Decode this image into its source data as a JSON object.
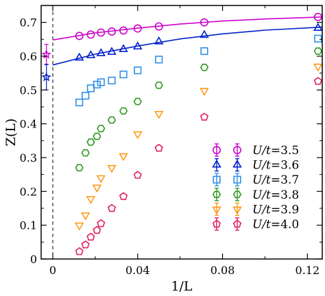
{
  "chart_data": {
    "type": "scatter",
    "xlabel": "1/L",
    "ylabel": "Z(L)",
    "xlim": [
      -0.0055,
      0.127
    ],
    "ylim": [
      0,
      0.75
    ],
    "xticks": [
      0,
      0.04,
      0.08,
      0.12
    ],
    "xtick_labels": [
      "0",
      "0.04",
      "0.08",
      "0.12"
    ],
    "yticks": [
      0,
      0.1,
      0.2,
      0.3,
      0.4,
      0.5,
      0.6,
      0.7
    ],
    "ytick_labels": [
      "0",
      "0.1",
      "0.2",
      "0.3",
      "0.4",
      "0.5",
      "0.6",
      "0.7"
    ],
    "grid": false,
    "legend_position": "bottom-right",
    "reference_line": {
      "x": 0,
      "style": "dashed"
    },
    "series": [
      {
        "name": "U/t=3.5",
        "legend_u": "U/t",
        "legend_val": "=3.5",
        "color": "#cc00cc",
        "marker": "circle",
        "x": [
          0.0125,
          0.0179,
          0.0227,
          0.0278,
          0.0333,
          0.04,
          0.05,
          0.0714,
          0.125
        ],
        "y": [
          0.66,
          0.664,
          0.67,
          0.673,
          0.676,
          0.682,
          0.688,
          0.7,
          0.716
        ],
        "fit": {
          "x0": 0,
          "y0": 0.648,
          "x": [
            0,
            0.02,
            0.04,
            0.06,
            0.08,
            0.1,
            0.127
          ],
          "y": [
            0.648,
            0.669,
            0.683,
            0.695,
            0.704,
            0.71,
            0.716
          ]
        },
        "extrapolated": {
          "x": -0.003,
          "y": 0.605,
          "err": 0.03,
          "marker": "star"
        }
      },
      {
        "name": "U/t=3.6",
        "legend_u": "U/t",
        "legend_val": "=3.6",
        "color": "#0020c8",
        "marker": "triangle-up",
        "x": [
          0.0125,
          0.0179,
          0.0227,
          0.0278,
          0.0333,
          0.04,
          0.05,
          0.0714,
          0.125
        ],
        "y": [
          0.595,
          0.602,
          0.608,
          0.612,
          0.62,
          0.628,
          0.643,
          0.662,
          0.683
        ],
        "fit": {
          "x": [
            0,
            0.02,
            0.04,
            0.06,
            0.08,
            0.1,
            0.127
          ],
          "y": [
            0.574,
            0.606,
            0.63,
            0.651,
            0.666,
            0.677,
            0.686
          ]
        },
        "extrapolated": {
          "x": -0.003,
          "y": 0.538,
          "err": 0.038,
          "marker": "star"
        }
      },
      {
        "name": "U/t=3.7",
        "legend_u": "U/t",
        "legend_val": "=3.7",
        "color": "#2f8fe6",
        "marker": "square",
        "x": [
          0.0125,
          0.0154,
          0.0179,
          0.0208,
          0.0227,
          0.0278,
          0.0333,
          0.04,
          0.05,
          0.0714,
          0.125
        ],
        "y": [
          0.463,
          0.483,
          0.505,
          0.516,
          0.523,
          0.528,
          0.546,
          0.558,
          0.59,
          0.615,
          0.652
        ]
      },
      {
        "name": "U/t=3.8",
        "legend_u": "U/t",
        "legend_val": "=3.8",
        "color": "#2e9a1e",
        "marker": "hexagon",
        "x": [
          0.0125,
          0.0154,
          0.0179,
          0.0208,
          0.0227,
          0.0278,
          0.0333,
          0.04,
          0.05,
          0.0714,
          0.125
        ],
        "y": [
          0.27,
          0.314,
          0.346,
          0.363,
          0.386,
          0.411,
          0.438,
          0.466,
          0.514,
          0.567,
          0.615
        ]
      },
      {
        "name": "U/t=3.9",
        "legend_u": "U/t",
        "legend_val": "=3.9",
        "color": "#ff9a1a",
        "marker": "triangle-down",
        "x": [
          0.0125,
          0.0154,
          0.0179,
          0.0208,
          0.0227,
          0.0278,
          0.0333,
          0.04,
          0.05,
          0.0714,
          0.125
        ],
        "y": [
          0.1,
          0.13,
          0.178,
          0.212,
          0.24,
          0.27,
          0.305,
          0.37,
          0.43,
          0.498,
          0.57
        ]
      },
      {
        "name": "U/t=4.0",
        "legend_u": "U/t",
        "legend_val": "=4.0",
        "color": "#e0205a",
        "marker": "pentagon",
        "x": [
          0.0125,
          0.0154,
          0.0179,
          0.0208,
          0.0227,
          0.0278,
          0.0333,
          0.04,
          0.05,
          0.0714,
          0.125
        ],
        "y": [
          0.022,
          0.042,
          0.065,
          0.085,
          0.105,
          0.15,
          0.185,
          0.248,
          0.328,
          0.42,
          0.526
        ]
      }
    ]
  }
}
